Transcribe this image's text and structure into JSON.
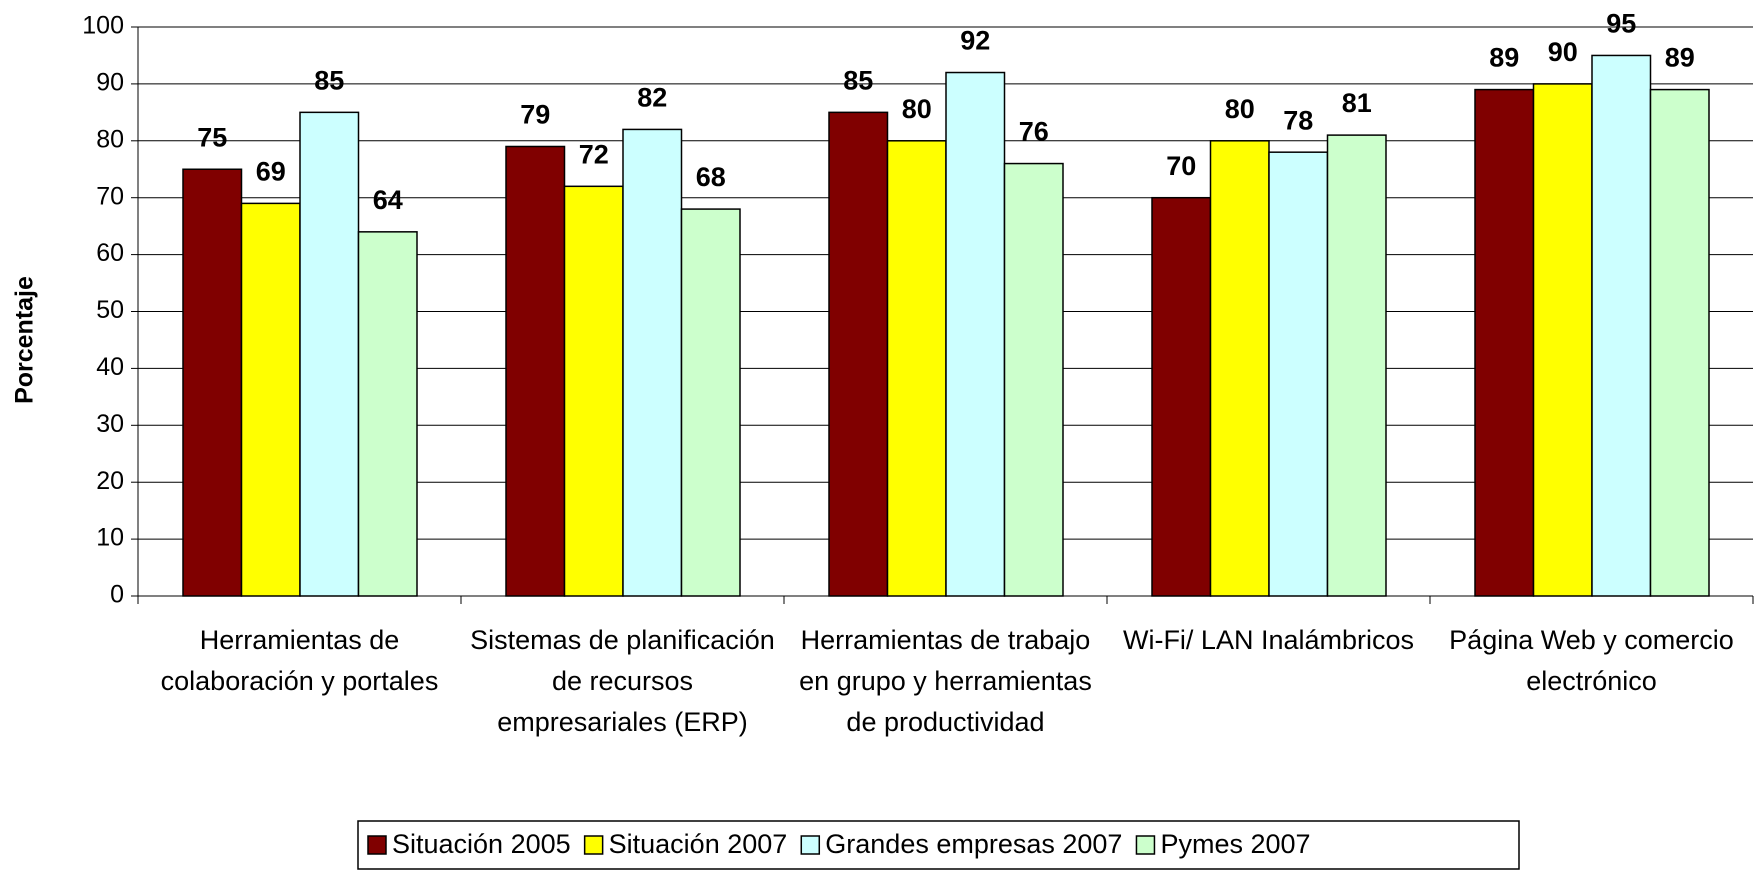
{
  "chart_data": {
    "type": "bar",
    "y_label": "Porcentaje",
    "categories": [
      "Herramientas de colaboración y portales",
      "Sistemas de planificación de recursos empresariales (ERP)",
      "Herramientas de trabajo en grupo y herramientas de productividad",
      "Wi-Fi/ LAN Inalámbricos",
      "Página Web y comercio electrónico"
    ],
    "series": [
      {
        "name": "Situación 2005",
        "color": "#800000",
        "values": [
          75,
          79,
          85,
          70,
          89
        ]
      },
      {
        "name": "Situación 2007",
        "color": "#ffff00",
        "values": [
          69,
          72,
          80,
          80,
          90
        ]
      },
      {
        "name": "Grandes empresas 2007",
        "color": "#ccffff",
        "values": [
          85,
          82,
          92,
          78,
          95
        ]
      },
      {
        "name": "Pymes 2007",
        "color": "#ccffcc",
        "values": [
          64,
          68,
          76,
          81,
          89
        ]
      }
    ],
    "ylim": [
      0,
      100
    ],
    "yticks": [
      0,
      10,
      20,
      30,
      40,
      50,
      60,
      70,
      80,
      90,
      100
    ],
    "grid": true,
    "legend": "bottom"
  }
}
